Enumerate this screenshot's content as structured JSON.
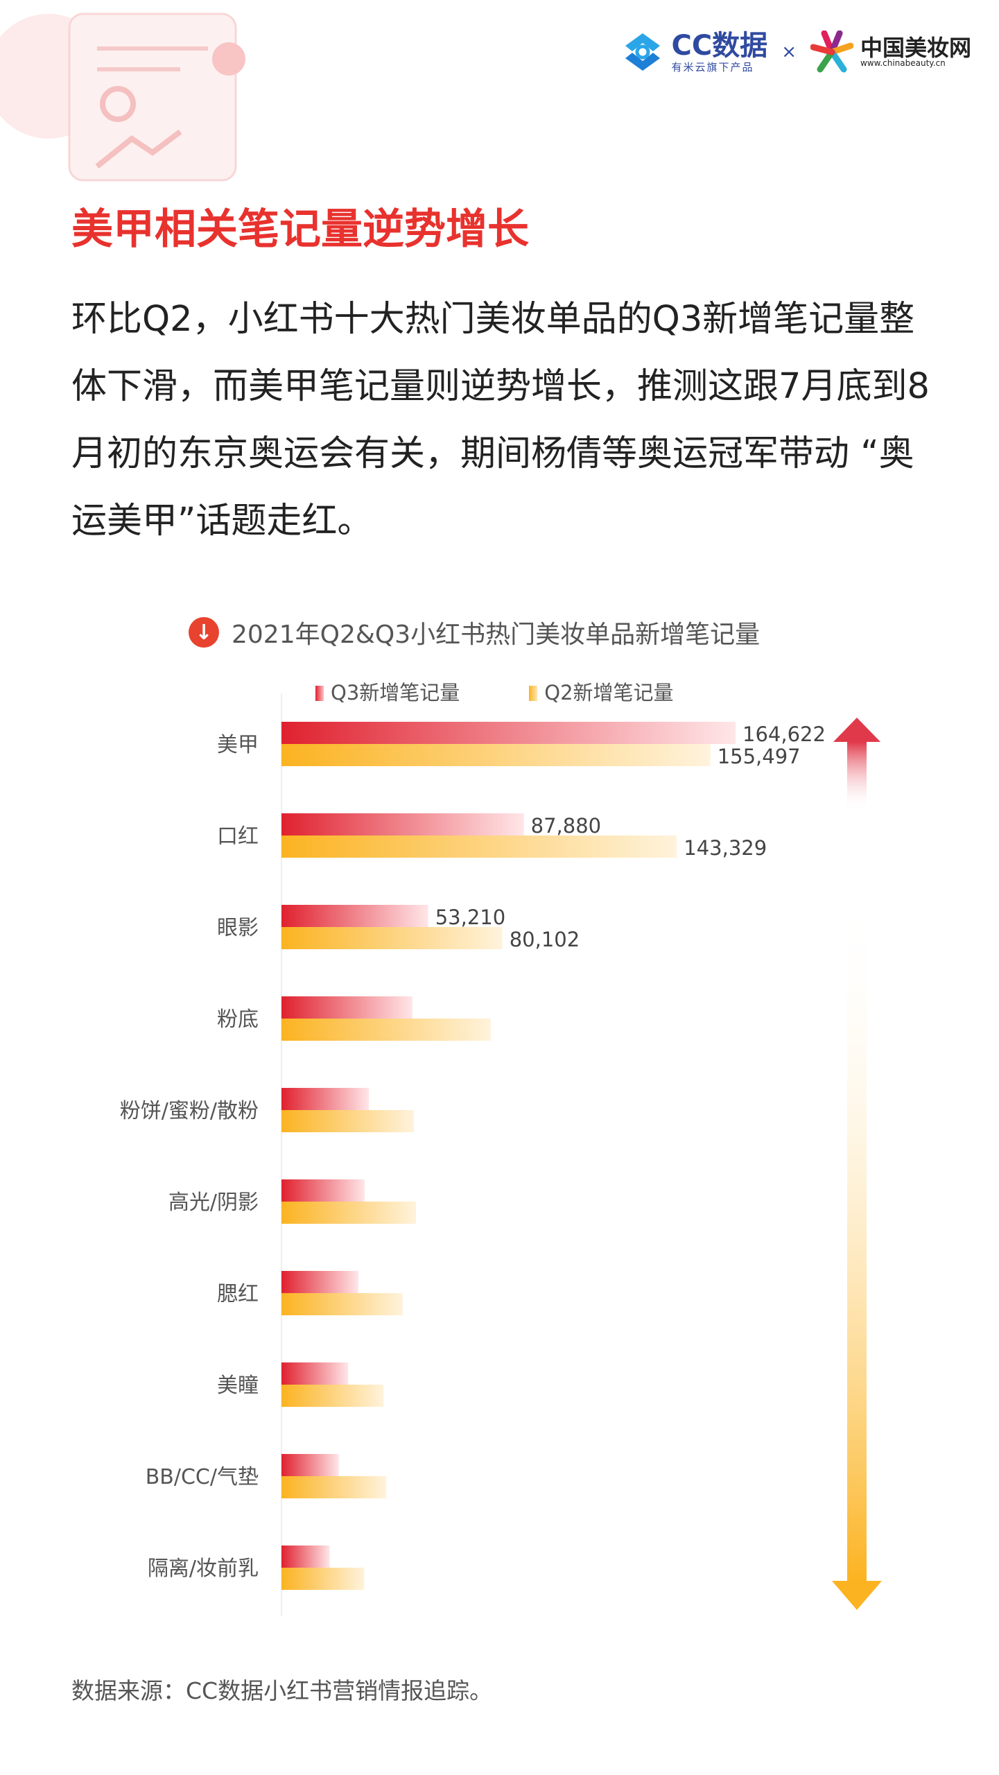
{
  "header": {
    "cc_logo": {
      "name": "CC数据",
      "tagline": "有米云旗下产品"
    },
    "separator": "×",
    "partner_logo": {
      "name": "中国美妆网",
      "url": "www.chinabeauty.cn"
    }
  },
  "headline": "美甲相关笔记量逆势增长",
  "paragraph": "环比Q2，小红书十大热门美妆单品的Q3新增笔记量整体下滑，而美甲笔记量则逆势增长，推测这跟7月底到8月初的东京奥运会有关，期间杨倩等奥运冠军带动 “奥运美甲”话题走红。",
  "colors": {
    "accent": "#e8322e",
    "q3": "#e0212f",
    "q2": "#fbb321"
  },
  "chart_data": {
    "type": "bar",
    "orientation": "horizontal",
    "title": "2021年Q2&Q3小红书热门美妆单品新增笔记量",
    "title_icon": "down-arrow-circle-icon",
    "categories": [
      "美甲",
      "口红",
      "眼影",
      "粉底",
      "粉饼/蜜粉/散粉",
      "高光/阴影",
      "腮红",
      "美瞳",
      "BB/CC/气垫",
      "隔离/妆前乳"
    ],
    "series": [
      {
        "name": "Q3新增笔记量",
        "color": "#e0212f",
        "values": [
          164622,
          87880,
          53210,
          47500,
          31700,
          30200,
          27900,
          24200,
          20800,
          17500
        ],
        "labels": [
          "164,622",
          "87,880",
          "53,210"
        ]
      },
      {
        "name": "Q2新增笔记量",
        "color": "#fbb321",
        "values": [
          155497,
          143329,
          80102,
          75900,
          48000,
          48800,
          43900,
          37000,
          38000,
          30000
        ],
        "labels": [
          "155,497",
          "143,329",
          "80,102"
        ]
      }
    ],
    "legend": "top",
    "grid": false,
    "xlim": [
      0,
      164622
    ]
  },
  "source": "数据来源：CC数据小红书营销情报追踪。"
}
